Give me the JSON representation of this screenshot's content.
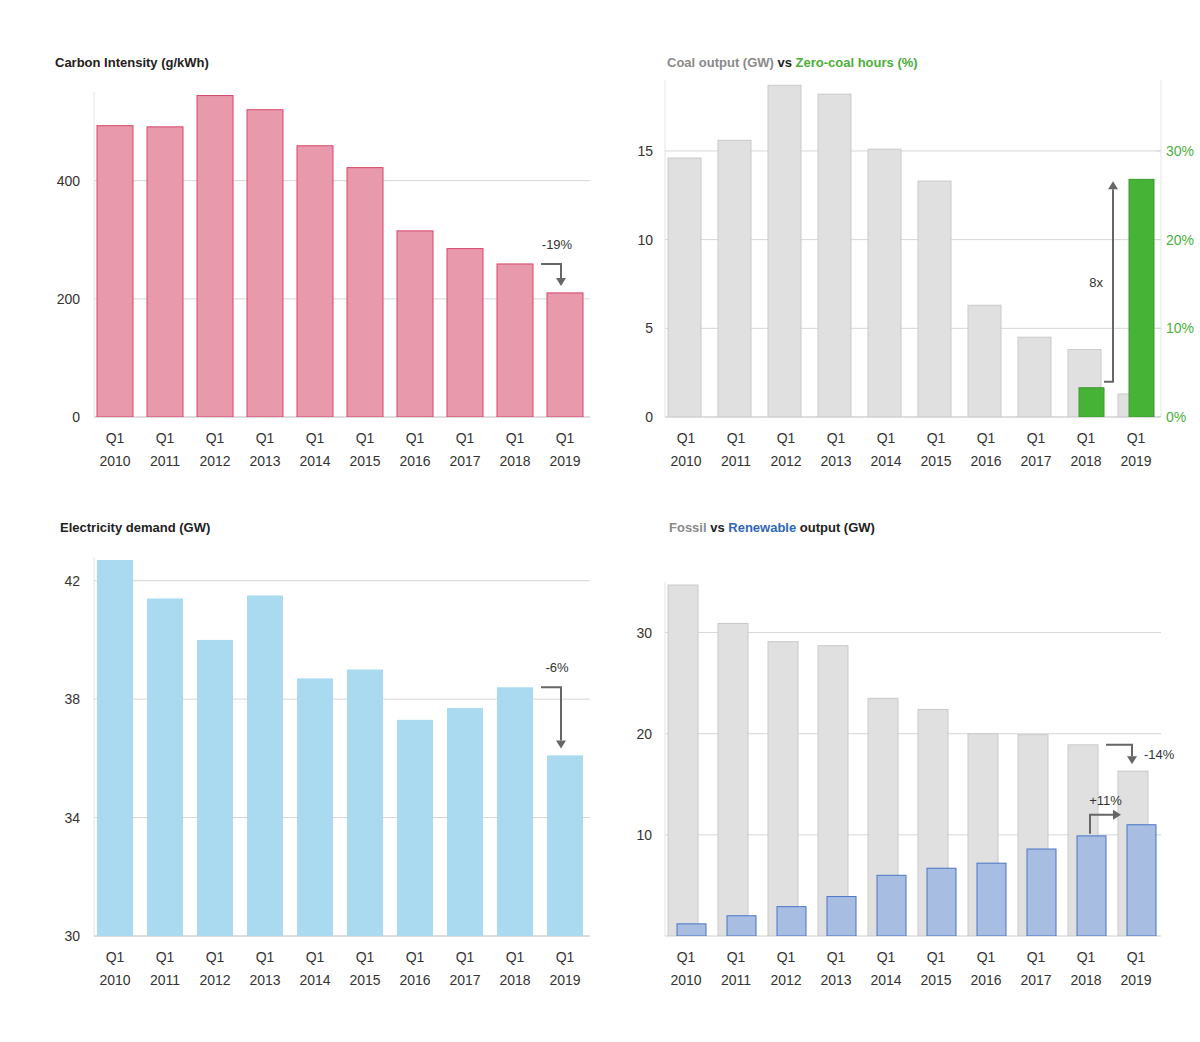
{
  "chart_data": [
    {
      "type": "bar",
      "title": "Carbon Intensity (g/kWh)",
      "categories": [
        "Q1 2010",
        "Q1 2011",
        "Q1 2012",
        "Q1 2013",
        "Q1 2014",
        "Q1 2015",
        "Q1 2016",
        "Q1 2017",
        "Q1 2018",
        "Q1 2019"
      ],
      "values": [
        493,
        491,
        544,
        520,
        459,
        422,
        315,
        285,
        259,
        210
      ],
      "color": "#e899ab",
      "ylim": [
        0,
        550
      ],
      "yticks": [
        0,
        200,
        400
      ],
      "grid": true,
      "annotation": "-19%"
    },
    {
      "type": "bar",
      "title": "Coal output (GW) vs Zero-coal hours (%)",
      "categories": [
        "Q1 2010",
        "Q1 2011",
        "Q1 2012",
        "Q1 2013",
        "Q1 2014",
        "Q1 2015",
        "Q1 2016",
        "Q1 2017",
        "Q1 2018",
        "Q1 2019"
      ],
      "series": [
        {
          "name": "Coal output (GW)",
          "color": "#e0e0e0",
          "values": [
            14.6,
            15.6,
            18.7,
            18.2,
            15.1,
            13.3,
            6.3,
            4.5,
            3.8,
            1.3
          ]
        },
        {
          "name": "Zero-coal hours (%)",
          "color": "#46b336",
          "values": [
            0,
            0,
            0,
            0,
            0,
            0,
            0,
            0,
            3.3,
            26.8
          ],
          "axis": "y2",
          "annotation": "8x"
        }
      ],
      "ylim": [
        0,
        19
      ],
      "yticks": [
        0,
        5,
        10,
        15
      ],
      "y2lim": [
        0,
        38
      ],
      "y2ticks": [
        {
          "value": 0,
          "label": "0%"
        },
        {
          "value": 10,
          "label": "10%"
        },
        {
          "value": 20,
          "label": "20%"
        },
        {
          "value": 30,
          "label": "30%"
        }
      ],
      "grid": true
    },
    {
      "type": "bar",
      "title": "Electricity demand (GW)",
      "categories": [
        "Q1 2010",
        "Q1 2011",
        "Q1 2012",
        "Q1 2013",
        "Q1 2014",
        "Q1 2015",
        "Q1 2016",
        "Q1 2017",
        "Q1 2018",
        "Q1 2019"
      ],
      "values": [
        42.7,
        41.4,
        40.0,
        41.5,
        38.7,
        39.0,
        37.3,
        37.7,
        38.4,
        36.1
      ],
      "color": "#a9daf0",
      "ylim": [
        30,
        42.8
      ],
      "yticks": [
        30,
        34,
        38,
        42
      ],
      "grid": true,
      "annotation": "-6%"
    },
    {
      "type": "bar",
      "title": "Fossil vs Renewable output (GW)",
      "categories": [
        "Q1 2010",
        "Q1 2011",
        "Q1 2012",
        "Q1 2013",
        "Q1 2014",
        "Q1 2015",
        "Q1 2016",
        "Q1 2017",
        "Q1 2018",
        "Q1 2019"
      ],
      "series": [
        {
          "name": "Fossil",
          "color": "#e0e0e0",
          "values": [
            34.7,
            30.9,
            29.1,
            28.7,
            23.5,
            22.4,
            20.0,
            19.9,
            18.9,
            16.3
          ],
          "annotation": "-14%"
        },
        {
          "name": "Renewable",
          "color": "#a8bde2",
          "values": [
            1.2,
            2.0,
            2.9,
            3.9,
            6.0,
            6.7,
            7.2,
            8.6,
            9.9,
            11.0
          ],
          "annotation": "+11%"
        }
      ],
      "ylim": [
        0,
        35
      ],
      "yticks": [
        10,
        20,
        30
      ],
      "grid": true
    }
  ]
}
